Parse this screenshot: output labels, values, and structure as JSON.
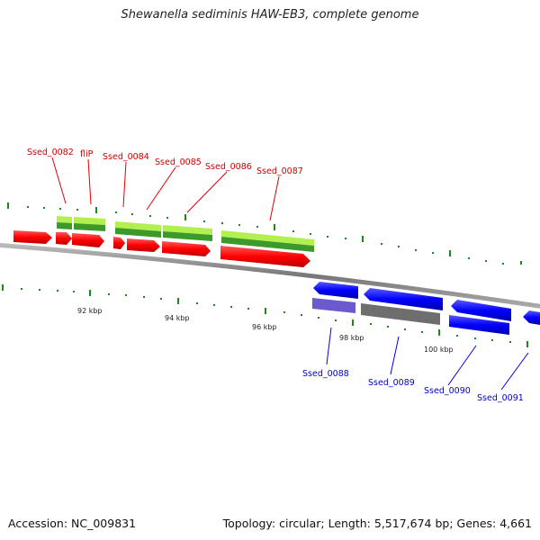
{
  "title": "Shewanella sediminis HAW-EB3, complete genome",
  "footer": {
    "accession": "Accession: NC_009831",
    "summary": "Topology: circular; Length: 5,517,674 bp; Genes: 4,661"
  },
  "colors": {
    "forward_gene": "#ff0000",
    "reverse_gene": "#0000ff",
    "forward_cds_light": "#b2f050",
    "forward_cds_dark": "#3c9a2a",
    "reverse_cds_pseudo": "#6a5acd",
    "reverse_cds_gray": "#6e6e6e",
    "backbone": "#888888",
    "tick": "#1a8a1a",
    "forward_label": "#cc0000",
    "reverse_label": "#0000cc"
  },
  "axis": {
    "tick_labels": [
      "92 kbp",
      "94 kbp",
      "96 kbp",
      "98 kbp",
      "100 kbp"
    ]
  },
  "genes_forward": [
    {
      "name": "Ssed_0082"
    },
    {
      "name": "fliP"
    },
    {
      "name": "Ssed_0084"
    },
    {
      "name": "Ssed_0085"
    },
    {
      "name": "Ssed_0086"
    },
    {
      "name": "Ssed_0087"
    }
  ],
  "genes_reverse": [
    {
      "name": "Ssed_0088"
    },
    {
      "name": "Ssed_0089"
    },
    {
      "name": "Ssed_0090"
    },
    {
      "name": "Ssed_0091"
    }
  ]
}
